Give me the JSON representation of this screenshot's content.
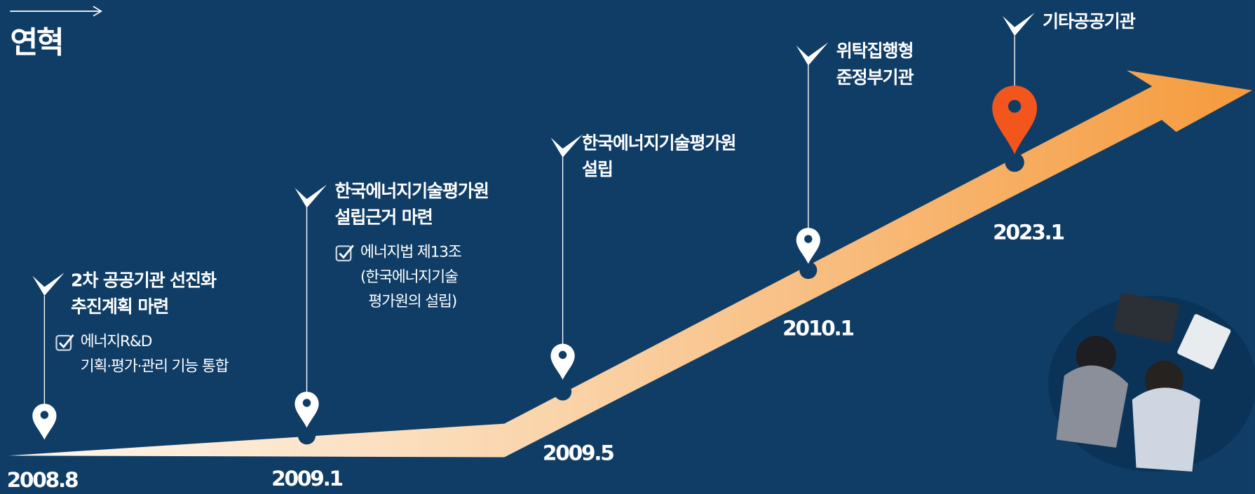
{
  "header": {
    "title": "연혁"
  },
  "events": [
    {
      "date": "2008.8",
      "title": [
        "2차 공공기관 선진화",
        "추진계획 마련"
      ],
      "note": [
        "에너지R&D",
        "기획·평가·관리 기능 통합"
      ]
    },
    {
      "date": "2009.1",
      "title": [
        "한국에너지기술평가원",
        "설립근거 마련"
      ],
      "note": [
        "에너지법 제13조",
        "(한국에너지기술",
        "평가원의 설립)"
      ]
    },
    {
      "date": "2009.5",
      "title": [
        "한국에너지기술평가원",
        "설립"
      ]
    },
    {
      "date": "2010.1",
      "title": [
        "위탁집행형",
        "준정부기관"
      ]
    },
    {
      "date": "2023.1",
      "title": [
        "기타공공기관"
      ]
    }
  ]
}
